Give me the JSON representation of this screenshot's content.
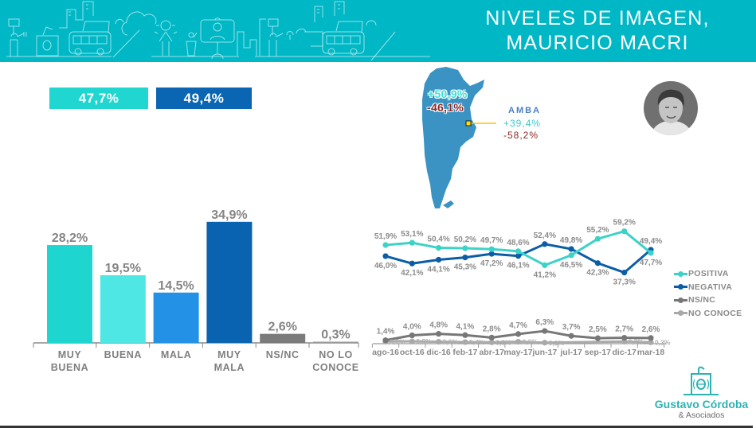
{
  "header": {
    "title_line1": "NIVELES DE IMAGEN,",
    "title_line2": "MAURICIO MACRI"
  },
  "summary": {
    "positive_total": "47,7%",
    "negative_total": "49,4%"
  },
  "map": {
    "national_positive": "+50,9%",
    "national_negative": "-46,1%",
    "region_label": "AMBA",
    "region_positive": "+39,4%",
    "region_negative": "-58,2%"
  },
  "colors": {
    "header": "#00b7c5",
    "positive": "#1fd6d1",
    "negative": "#0a66b3",
    "map_fill": "#3a93c3",
    "marker": "#ffe100",
    "brand": "#2bb3b1"
  },
  "brand": {
    "name": "Gustavo Córdoba",
    "sub": "& Asociados"
  },
  "chart_data": [
    {
      "type": "bar",
      "title": "",
      "xlabel": "",
      "ylabel": "",
      "categories": [
        "MUY\nBUENA",
        "BUENA",
        "MALA",
        "MUY\nMALA",
        "NS/NC",
        "NO LO\nCONOCE"
      ],
      "values": [
        28.2,
        19.5,
        14.5,
        34.9,
        2.6,
        0.3
      ],
      "labels": [
        "28,2%",
        "19,5%",
        "14,5%",
        "34,9%",
        "2,6%",
        "0,3%"
      ],
      "colors": [
        "#1fd5d0",
        "#4fe7e3",
        "#2392e6",
        "#0a63b0",
        "#7b7b7b",
        "#9a9a9a"
      ],
      "ylim": [
        0,
        35
      ],
      "grid": false
    },
    {
      "type": "line",
      "title": "",
      "xlabel": "",
      "ylabel": "",
      "x": [
        "ago-16",
        "oct-16",
        "dic-16",
        "feb-17",
        "abr-17",
        "may-17",
        "jun-17",
        "jul-17",
        "sep-17",
        "dic-17",
        "mar-18"
      ],
      "series": [
        {
          "name": "POSITIVA",
          "color": "#3dd2c7",
          "values": [
            51.9,
            53.1,
            50.4,
            50.2,
            49.7,
            48.6,
            41.2,
            46.5,
            55.2,
            59.2,
            47.7
          ],
          "labels": [
            "51,9%",
            "53,1%",
            "50,4%",
            "50,2%",
            "49,7%",
            "48,6%",
            "41,2%",
            "46,5%",
            "55,2%",
            "59,2%",
            "47,7%"
          ]
        },
        {
          "name": "NEGATIVA",
          "color": "#0b5ea6",
          "values": [
            46.0,
            42.1,
            44.1,
            45.3,
            47.2,
            46.1,
            52.4,
            49.8,
            42.3,
            37.3,
            49.4
          ],
          "labels": [
            "46,0%",
            "42,1%",
            "44,1%",
            "45,3%",
            "47,2%",
            "46,1%",
            "52,4%",
            "49,8%",
            "42,3%",
            "37,3%",
            "49,4%"
          ]
        },
        {
          "name": "NS/NC",
          "color": "#777777",
          "values": [
            1.4,
            4.0,
            4.8,
            4.1,
            2.8,
            4.7,
            6.3,
            3.7,
            2.5,
            2.7,
            2.6
          ],
          "labels": [
            "1,4%",
            "4,0%",
            "4,8%",
            "4,1%",
            "2,8%",
            "4,7%",
            "6,3%",
            "3,7%",
            "2,5%",
            "2,7%",
            "2,6%"
          ]
        },
        {
          "name": "NO CONOCE",
          "color": "#a9a9a9",
          "values": [
            0.7,
            0.8,
            0.6,
            0.4,
            0.3,
            0.6,
            0.1,
            null,
            null,
            0.7,
            0.3
          ],
          "labels": [
            "0,7%",
            "0,8%",
            "0,6%",
            "0,4%",
            "0,3%",
            "0,6%",
            "0,1%",
            null,
            null,
            "0,7%",
            "0,3%"
          ]
        }
      ],
      "legend": "right",
      "ylim": [
        0,
        62
      ],
      "grid": false
    }
  ]
}
